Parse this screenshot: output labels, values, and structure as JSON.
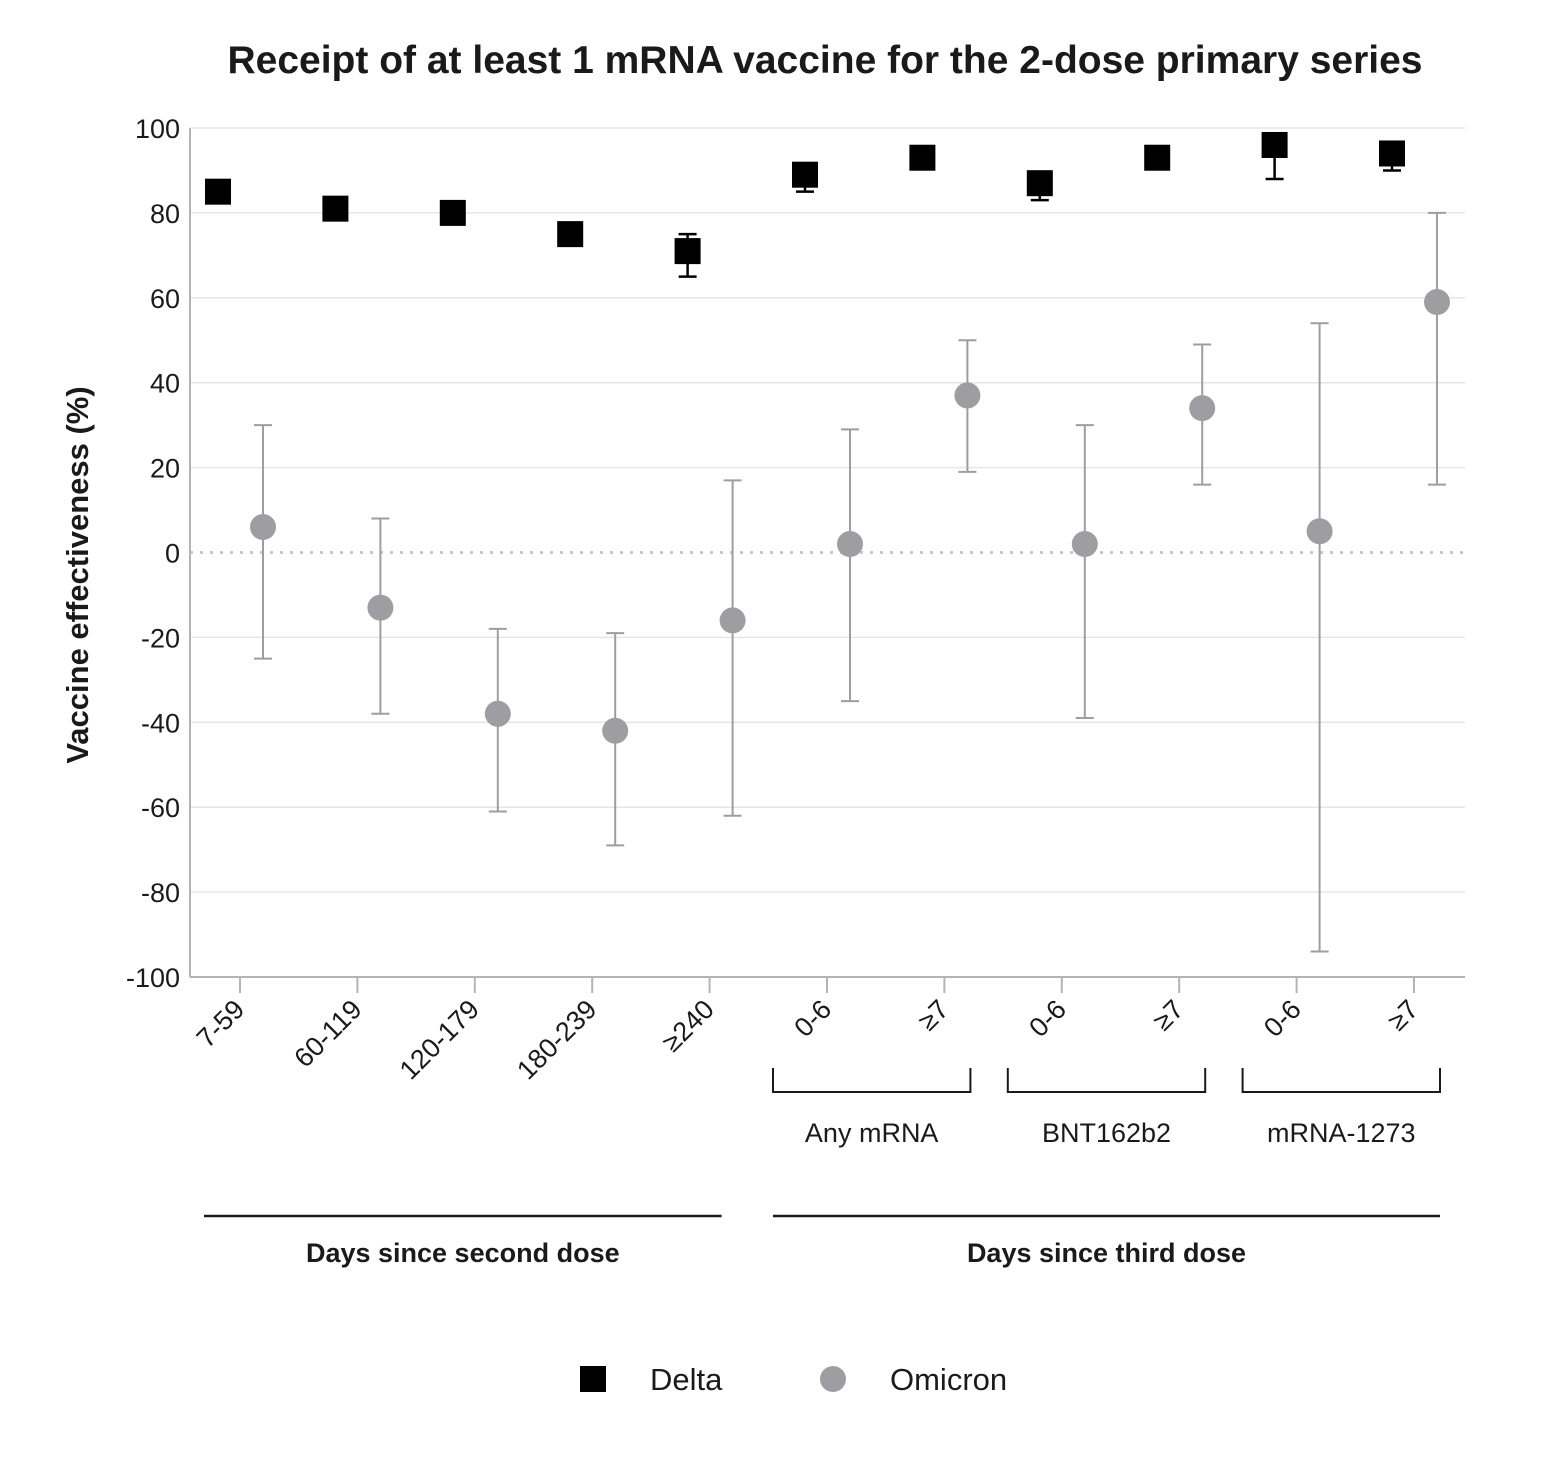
{
  "chart_data": {
    "type": "scatter",
    "title": "Receipt of at least 1 mRNA vaccine for the 2-dose primary series",
    "ylabel": "Vaccine effectiveness (%)",
    "ylim": [
      -100,
      100
    ],
    "yticks": [
      "100",
      "80",
      "60",
      "40",
      "20",
      "0",
      "-20",
      "-40",
      "-60",
      "-80",
      "-100"
    ],
    "grid": true,
    "reference_line": 0,
    "categories": [
      "7-59",
      "60-119",
      "120-179",
      "180-239",
      "≥240",
      "0-6",
      "≥7",
      "0-6",
      "≥7",
      "0-6",
      "≥7"
    ],
    "subgroups": [
      {
        "label": "Any mRNA",
        "first": 5,
        "last": 6
      },
      {
        "label": "BNT162b2",
        "first": 7,
        "last": 8
      },
      {
        "label": "mRNA-1273",
        "first": 9,
        "last": 10
      }
    ],
    "sections": [
      {
        "label": "Days since second dose",
        "first": 0,
        "last": 4
      },
      {
        "label": "Days since third dose",
        "first": 5,
        "last": 10
      }
    ],
    "series": [
      {
        "name": "Delta",
        "color": "#000000",
        "marker": "square",
        "values": [
          85,
          81,
          80,
          75,
          71,
          89,
          93,
          87,
          93,
          96,
          94
        ],
        "lower": [
          84,
          80,
          79,
          74,
          65,
          85,
          92,
          83,
          92,
          88,
          90
        ],
        "upper": [
          86,
          82,
          81,
          76,
          75,
          90,
          94,
          88,
          94,
          97,
          96
        ]
      },
      {
        "name": "Omicron",
        "color": "#9e9ea2",
        "marker": "circle",
        "values": [
          6,
          -13,
          -38,
          -42,
          -16,
          2,
          37,
          2,
          34,
          5,
          59
        ],
        "lower": [
          -25,
          -38,
          -61,
          -69,
          -62,
          -35,
          19,
          -39,
          16,
          -94,
          16
        ],
        "upper": [
          30,
          8,
          -18,
          -19,
          17,
          29,
          50,
          30,
          49,
          54,
          80
        ]
      }
    ],
    "legend": {
      "position": "bottom-center",
      "entries": [
        "Delta",
        "Omicron"
      ]
    }
  }
}
